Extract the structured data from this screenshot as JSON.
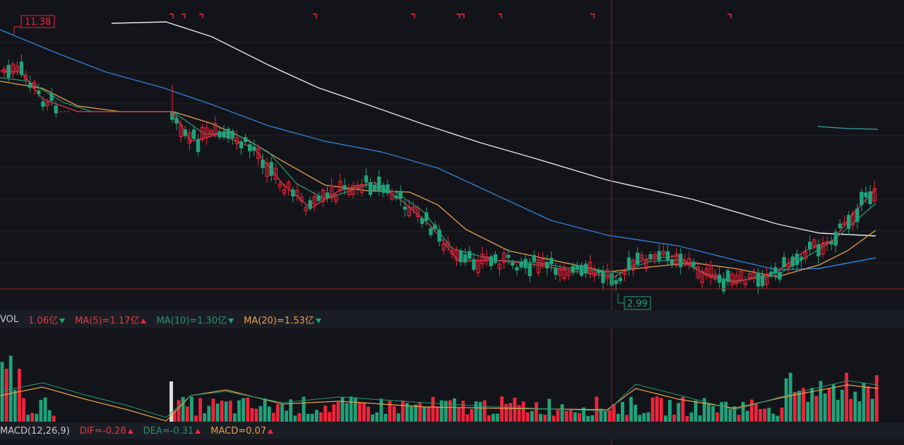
{
  "chart_data": {
    "type": "candlestick",
    "price_panel": {
      "high_label": "11.38",
      "low_label": "2.99",
      "colors": {
        "up": "#f0233b",
        "down": "#1fa37a",
        "ma5": "#e03b46",
        "ma10": "#22956a",
        "ma20": "#e8a04c",
        "ma60": "#2f7fd6",
        "ma120": "#e6e6e6",
        "ma_extra": "#3aa0a8"
      }
    },
    "volume_panel": {
      "labels": {
        "name": "VOL",
        "vol": "1.06亿",
        "ma5": "MA(5)=1.17亿",
        "ma10": "MA(10)=1.30亿",
        "ma20": "MA(20)=1.53亿"
      }
    },
    "macd_panel": {
      "labels": {
        "name": "MACD(12,26,9)",
        "dif": "DIF=-0.28",
        "dea": "DEA=-0.31",
        "macd": "MACD=0.07"
      }
    }
  }
}
